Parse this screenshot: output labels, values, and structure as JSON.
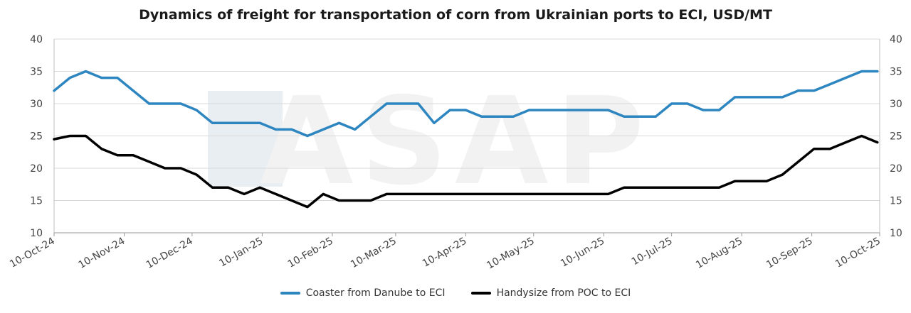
{
  "chart_data": {
    "type": "line",
    "title": "Dynamics of freight for transportation of corn from Ukrainian ports to ECI, USD/MT",
    "xlabel": "",
    "ylabel": "",
    "ylim": [
      10,
      40
    ],
    "y_ticks": [
      "10",
      "15",
      "20",
      "25",
      "30",
      "35",
      "40"
    ],
    "x_ticks": [
      "10-Oct-24",
      "10-Nov-24",
      "10-Dec-24",
      "10-Jan-25",
      "10-Feb-25",
      "10-Mar-25",
      "10-Apr-25",
      "10-May-25",
      "10-Jun-25",
      "10-Jul-25",
      "10-Aug-25",
      "10-Sep-25",
      "10-Oct-25"
    ],
    "x_range": [
      "10-Oct-24",
      "10-Oct-25"
    ],
    "grid": "horizontal",
    "legend_position": "bottom",
    "watermark": "ASAP",
    "colors": {
      "coaster": "#2e86c1",
      "handysize": "#000000",
      "grid": "#d9d9d9"
    },
    "x": [
      "10-Oct-24",
      "17-Oct-24",
      "24-Oct-24",
      "31-Oct-24",
      "7-Nov-24",
      "14-Nov-24",
      "21-Nov-24",
      "28-Nov-24",
      "5-Dec-24",
      "12-Dec-24",
      "19-Dec-24",
      "26-Dec-24",
      "2-Jan-25",
      "9-Jan-25",
      "16-Jan-25",
      "23-Jan-25",
      "30-Jan-25",
      "6-Feb-25",
      "13-Feb-25",
      "20-Feb-25",
      "27-Feb-25",
      "6-Mar-25",
      "13-Mar-25",
      "20-Mar-25",
      "27-Mar-25",
      "3-Apr-25",
      "10-Apr-25",
      "17-Apr-25",
      "24-Apr-25",
      "1-May-25",
      "8-May-25",
      "15-May-25",
      "22-May-25",
      "29-May-25",
      "5-Jun-25",
      "12-Jun-25",
      "19-Jun-25",
      "26-Jun-25",
      "3-Jul-25",
      "10-Jul-25",
      "17-Jul-25",
      "24-Jul-25",
      "31-Jul-25",
      "7-Aug-25",
      "14-Aug-25",
      "21-Aug-25",
      "28-Aug-25",
      "4-Sep-25",
      "11-Sep-25",
      "18-Sep-25",
      "25-Sep-25",
      "2-Oct-25",
      "9-Oct-25"
    ],
    "series": [
      {
        "name": "Coaster from Danube to ECI",
        "values": [
          32,
          34,
          35,
          34,
          34,
          32,
          30,
          30,
          30,
          29,
          27,
          27,
          27,
          27,
          26,
          26,
          25,
          26,
          27,
          26,
          28,
          30,
          30,
          30,
          27,
          29,
          29,
          28,
          28,
          28,
          29,
          29,
          29,
          29,
          29,
          29,
          28,
          28,
          28,
          30,
          30,
          29,
          29,
          31,
          31,
          31,
          31,
          32,
          32,
          33,
          34,
          35,
          35
        ]
      },
      {
        "name": "Handysize from POC to ECI",
        "values": [
          24.5,
          25,
          25,
          23,
          22,
          22,
          21,
          20,
          20,
          19,
          17,
          17,
          16,
          17,
          16,
          15,
          14,
          16,
          15,
          15,
          15,
          16,
          16,
          16,
          16,
          16,
          16,
          16,
          16,
          16,
          16,
          16,
          16,
          16,
          16,
          16,
          17,
          17,
          17,
          17,
          17,
          17,
          17,
          18,
          18,
          18,
          19,
          21,
          23,
          23,
          24,
          25,
          24
        ]
      }
    ]
  }
}
